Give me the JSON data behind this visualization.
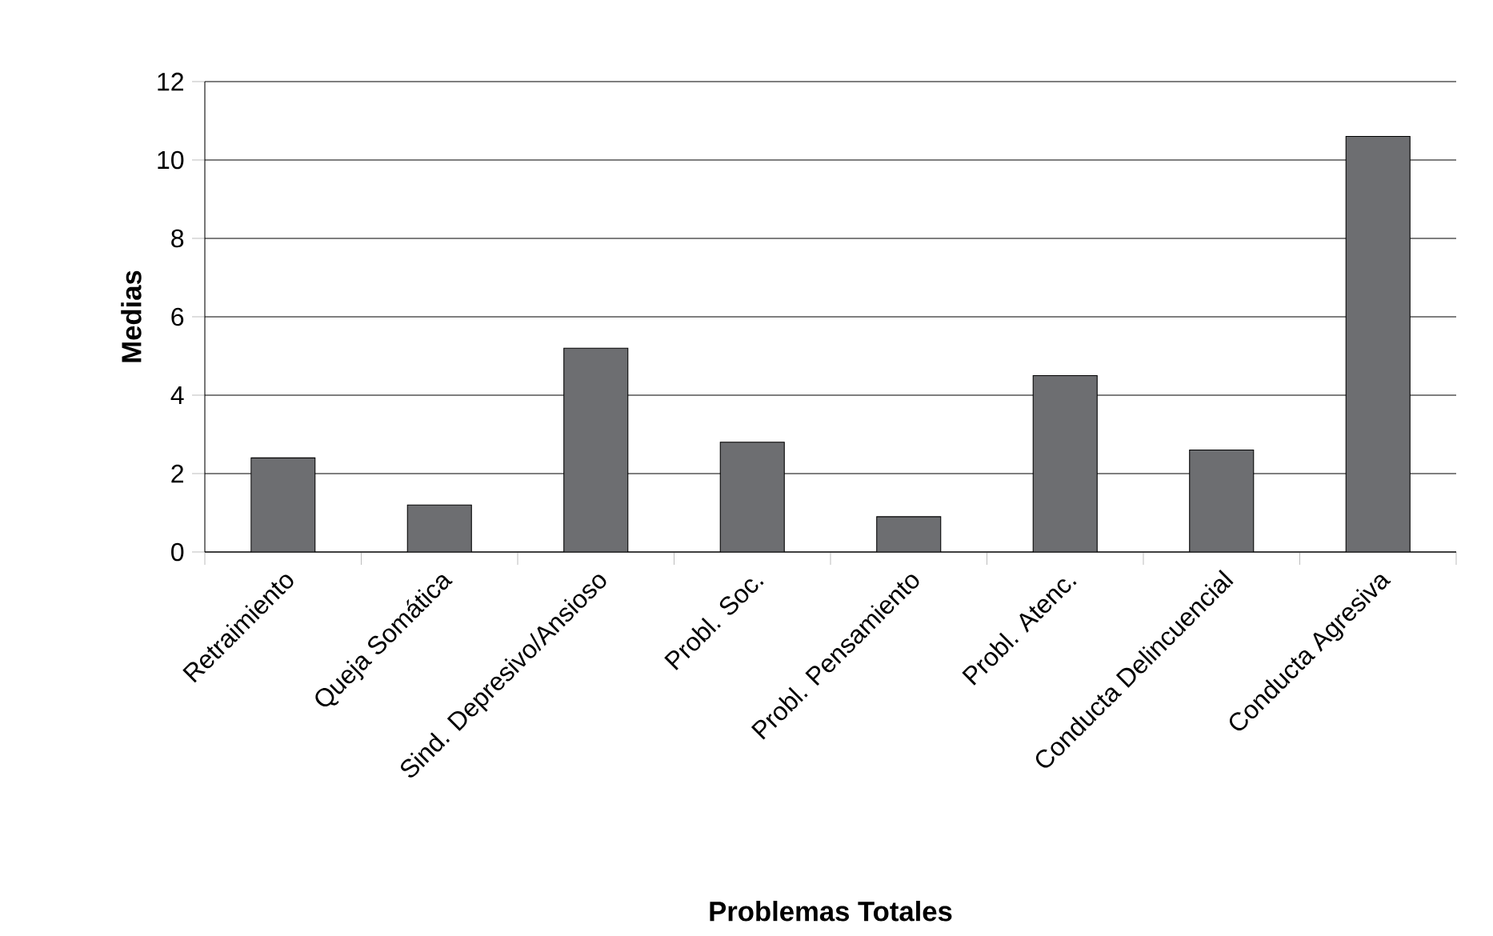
{
  "chart_data": {
    "type": "bar",
    "xlabel": "Problemas Totales",
    "ylabel": "Medias",
    "categories": [
      "Retraimiento",
      "Queja Somática",
      "Sind. Depresivo/Ansioso",
      "Probl. Soc.",
      "Probl. Pensamiento",
      "Probl. Atenc.",
      "Conducta Delincuencial",
      "Conducta Agresiva"
    ],
    "values": [
      2.4,
      1.2,
      5.2,
      2.8,
      0.9,
      4.5,
      2.6,
      10.6
    ],
    "color": "#6d6e71",
    "ylim": [
      0,
      12
    ],
    "yticks": [
      0,
      2,
      4,
      6,
      8,
      10,
      12
    ],
    "grid": "y"
  }
}
